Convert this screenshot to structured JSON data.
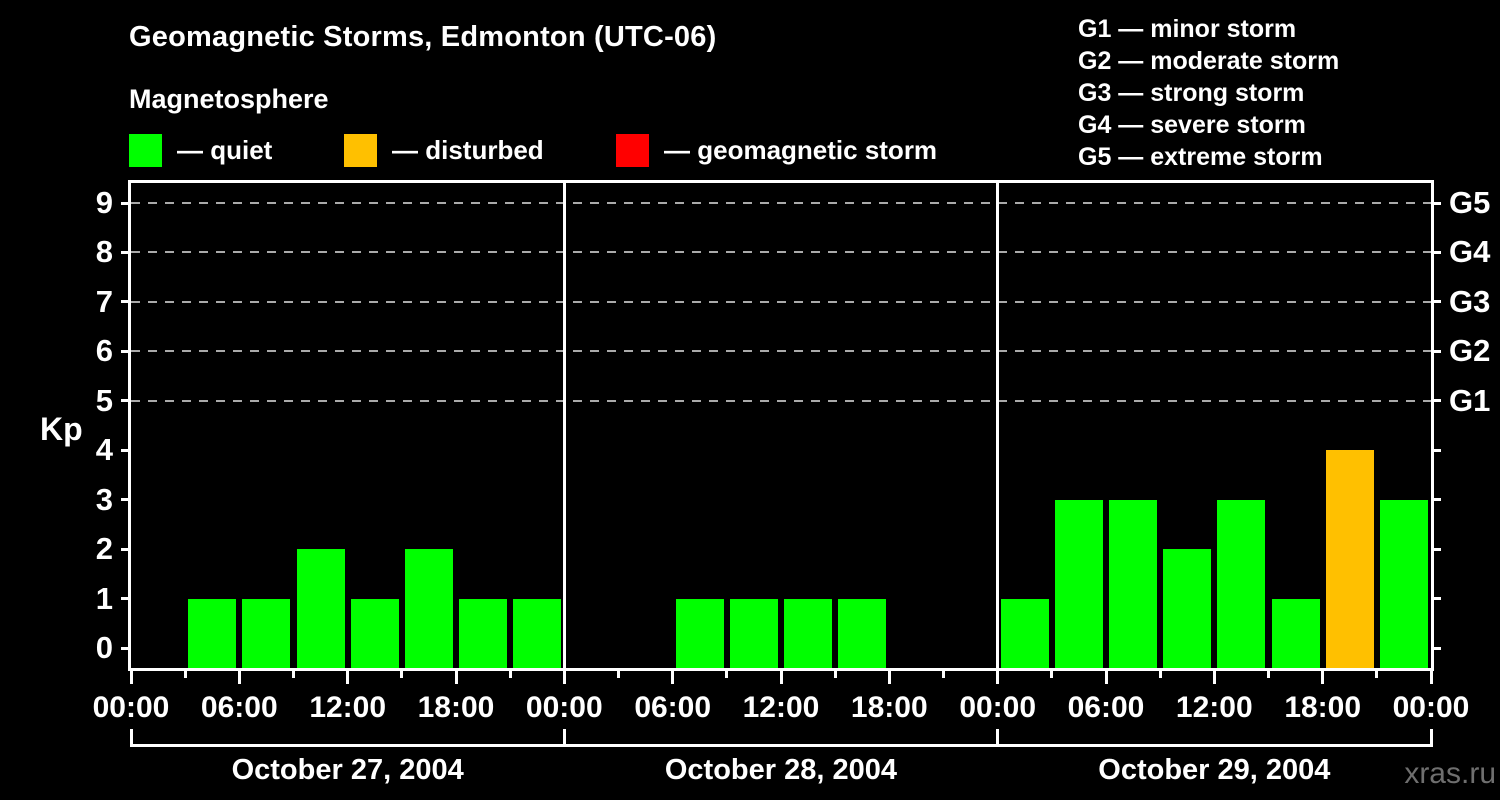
{
  "page": {
    "background": "#000000",
    "title": "Geomagnetic Storms, Edmonton (UTC-06)",
    "subtitle": "Magnetosphere",
    "watermark": "xras.ru"
  },
  "legend": {
    "items": [
      {
        "id": "quiet",
        "label": "— quiet",
        "color": "#00ff00"
      },
      {
        "id": "disturbed",
        "label": "— disturbed",
        "color": "#ffc000"
      },
      {
        "id": "storm",
        "label": "— geomagnetic storm",
        "color": "#ff0000"
      }
    ]
  },
  "storm_scale": {
    "lines": [
      "G1 — minor storm",
      "G2 — moderate storm",
      "G3 — strong storm",
      "G4 — severe storm",
      "G5 — extreme storm"
    ]
  },
  "chart_data": {
    "type": "bar",
    "title": "Geomagnetic Storms, Edmonton (UTC-06)",
    "subtitle": "Magnetosphere",
    "ylabel": "Kp",
    "ylim": [
      -0.4,
      9.4
    ],
    "yticks": [
      0,
      1,
      2,
      3,
      4,
      5,
      6,
      7,
      8,
      9
    ],
    "gridlines_kp": [
      5,
      6,
      7,
      8,
      9
    ],
    "grid_style": "dashed",
    "g_levels": [
      {
        "kp": 5,
        "label": "G1"
      },
      {
        "kp": 6,
        "label": "G2"
      },
      {
        "kp": 7,
        "label": "G3"
      },
      {
        "kp": 8,
        "label": "G4"
      },
      {
        "kp": 9,
        "label": "G5"
      }
    ],
    "interval_hours": 3,
    "hour_tick_labels": [
      "00:00",
      "06:00",
      "12:00",
      "18:00"
    ],
    "closing_hour_label": "00:00",
    "status_colors": {
      "quiet": "#00ff00",
      "disturbed": "#ffc000",
      "storm": "#ff0000"
    },
    "days": [
      {
        "date": "October 27, 2004",
        "values": [
          0,
          1,
          1,
          2,
          1,
          2,
          1,
          1
        ],
        "statuses": [
          "quiet",
          "quiet",
          "quiet",
          "quiet",
          "quiet",
          "quiet",
          "quiet",
          "quiet"
        ]
      },
      {
        "date": "October 28, 2004",
        "values": [
          0,
          0,
          1,
          1,
          1,
          1,
          0,
          0
        ],
        "statuses": [
          "quiet",
          "quiet",
          "quiet",
          "quiet",
          "quiet",
          "quiet",
          "quiet",
          "quiet"
        ]
      },
      {
        "date": "October 29, 2004",
        "values": [
          1,
          3,
          3,
          2,
          3,
          1,
          4,
          3
        ],
        "statuses": [
          "quiet",
          "quiet",
          "quiet",
          "quiet",
          "quiet",
          "quiet",
          "disturbed",
          "quiet"
        ]
      }
    ]
  }
}
